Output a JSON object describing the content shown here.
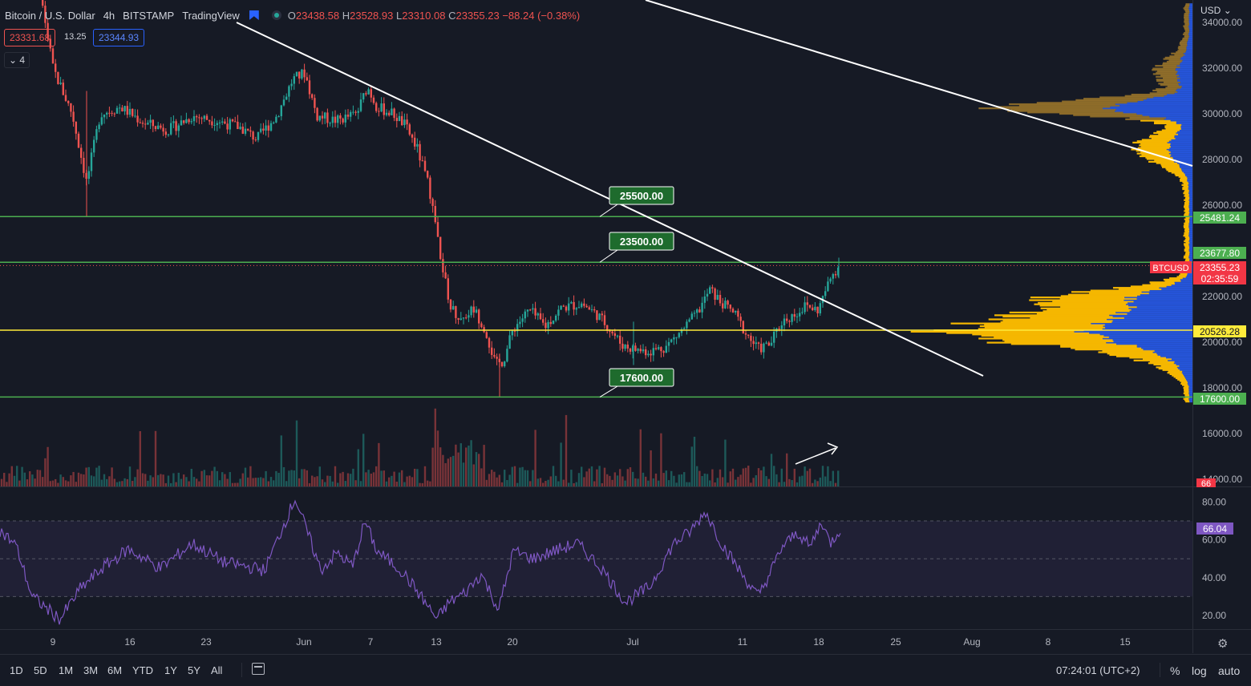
{
  "header": {
    "symbol": "Bitcoin / U.S. Dollar",
    "interval": "4h",
    "exchange": "BITSTAMP",
    "source": "TradingView",
    "open_label": "O",
    "open": "23438.58",
    "high_label": "H",
    "high": "23528.93",
    "low_label": "L",
    "low": "23310.08",
    "close_label": "C",
    "close": "23355.23",
    "change": "−88.24 (−0.38%)",
    "sell_price": "23331.68",
    "spread": "13.25",
    "buy_price": "23344.93",
    "indicators_count": "4",
    "currency_menu": "USD"
  },
  "price_axis": {
    "ticks": [
      "34000.00",
      "32000.00",
      "30000.00",
      "28000.00",
      "26000.00",
      "22000.00",
      "20000.00",
      "18000.00",
      "16000.00",
      "14000.00"
    ],
    "tags": [
      {
        "text": "25481.24",
        "color": "#4caf50"
      },
      {
        "text": "23677.80",
        "color": "#4caf50"
      },
      {
        "text": "23355.23",
        "color": "#f23645"
      },
      {
        "text": "02:35:59",
        "color": "#f23645"
      },
      {
        "text": "20526.28",
        "color": "#ffeb3b"
      },
      {
        "text": "17600.00",
        "color": "#4caf50"
      }
    ],
    "symbol_tag": "BTCUSD",
    "volume_tag": "66"
  },
  "level_labels": [
    "25500.00",
    "23500.00",
    "17600.00"
  ],
  "rsi_axis": {
    "ticks": [
      "80.00",
      "60.00",
      "40.00",
      "20.00"
    ],
    "value": "66.04"
  },
  "time_axis": [
    "9",
    "16",
    "23",
    "Jun",
    "7",
    "13",
    "20",
    "Jul",
    "11",
    "18",
    "25",
    "Aug",
    "8",
    "15"
  ],
  "bottom": {
    "ranges": [
      "1D",
      "5D",
      "1M",
      "3M",
      "6M",
      "YTD",
      "1Y",
      "5Y",
      "All"
    ],
    "clock": "07:24:01 (UTC+2)",
    "percent_label": "%",
    "log_label": "log",
    "auto_label": "auto"
  },
  "colors": {
    "bg": "#161a25",
    "up": "#26a69a",
    "down": "#ef5350",
    "level": "#4caf50",
    "poc": "#ffeb3b",
    "rsi": "#7e57c2",
    "vp_up": "#2962ff",
    "vp_down": "#f5b700"
  },
  "chart_data": {
    "type": "candlestick",
    "interval": "4h",
    "horizontal_levels": [
      25500,
      23500,
      20526.28,
      17600
    ],
    "trendlines": [
      {
        "from": [
          "2022-05-30",
          36000
        ],
        "to": [
          "2022-07-27",
          18600
        ]
      },
      {
        "from": [
          "2022-06-05",
          35800
        ],
        "to": [
          "2022-08-20",
          27800
        ]
      }
    ],
    "rsi_last": 66.04,
    "last_price": 23355.23
  }
}
